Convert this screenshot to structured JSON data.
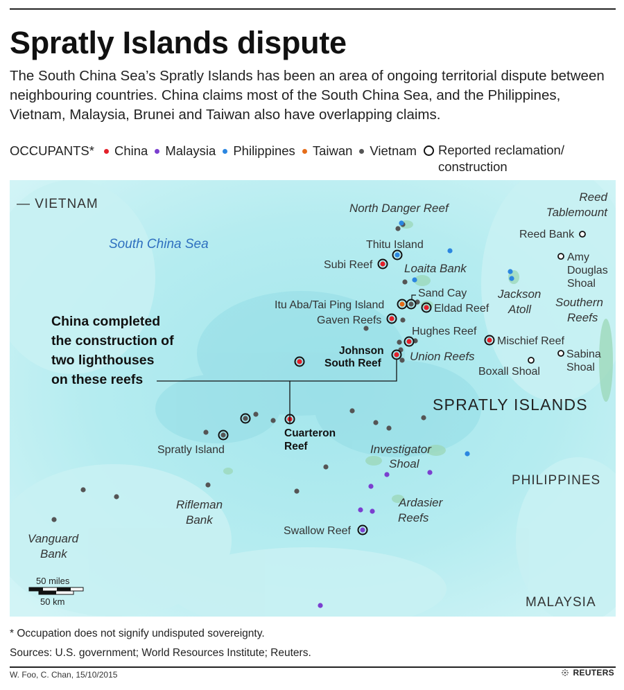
{
  "title": "Spratly Islands dispute",
  "subtitle": "The South China Sea’s Spratly Islands has been an area of ongoing territorial dispute between neighbouring countries. China claims most of the South China Sea, and the Philippines, Vietnam, Malaysia, Brunei and Taiwan also have overlapping claims.",
  "legend": {
    "heading": "OCCUPANTS*",
    "items": [
      {
        "label": "China",
        "color": "#e3202a"
      },
      {
        "label": "Malaysia",
        "color": "#7b3fcf"
      },
      {
        "label": "Philippines",
        "color": "#2b86e0"
      },
      {
        "label": "Taiwan",
        "color": "#e56d1a"
      },
      {
        "label": "Vietnam",
        "color": "#555555"
      }
    ],
    "reclamation_line1": "Reported reclamation/",
    "reclamation_line2": "construction"
  },
  "map": {
    "labels": {
      "vietnam": "— VIETNAM",
      "south_china_sea": "South China Sea",
      "north_danger_reef": "North Danger Reef",
      "reed_tablemount_1": "Reed",
      "reed_tablemount_2": "Tablemount",
      "reed_bank": "Reed Bank",
      "amy_douglas_1": "Amy",
      "amy_douglas_2": "Douglas",
      "amy_douglas_3": "Shoal",
      "thitu_island": "Thitu Island",
      "subi_reef": "Subi Reef",
      "loaita_bank": "Loaita Bank",
      "jackson_atoll_1": "Jackson",
      "jackson_atoll_2": "Atoll",
      "sand_cay": "Sand Cay",
      "itu_aba": "Itu Aba/Tai Ping Island",
      "eldad_reef": "Eldad Reef",
      "southern_reefs_1": "Southern",
      "southern_reefs_2": "Reefs",
      "gaven_reefs": "Gaven Reefs",
      "hughes_reef": "Hughes Reef",
      "mischief_reef": "Mischief Reef",
      "johnson_south_1": "Johnson",
      "johnson_south_2": "South Reef",
      "union_reefs": "Union Reefs",
      "sabina_1": "Sabina",
      "sabina_2": "Shoal",
      "boxall_shoal": "Boxall Shoal",
      "spratly_islands": "SPRATLY ISLANDS",
      "cuarteron_1": "Cuarteron",
      "cuarteron_2": "Reef",
      "spratly_island": "Spratly Island",
      "investigator_1": "Investigator",
      "investigator_2": "Shoal",
      "philippines": "PHILIPPINES",
      "rifleman_1": "Rifleman",
      "rifleman_2": "Bank",
      "ardasier_1": "Ardasier",
      "ardasier_2": "Reefs",
      "swallow_reef": "Swallow Reef",
      "vanguard_1": "Vanguard",
      "vanguard_2": "Bank",
      "malaysia": "MALAYSIA"
    },
    "annotation": [
      "China completed",
      "the construction of",
      "two lighthouses",
      "on these reefs"
    ],
    "scale": {
      "miles": "50 miles",
      "km": "50 km"
    }
  },
  "footnote": "* Occupation does not signify undisputed sovereignty.",
  "sources": "Sources: U.S. government; World Resources Institute; Reuters.",
  "credit": "W. Foo, C. Chan, 15/10/2015",
  "brand": "REUTERS"
}
